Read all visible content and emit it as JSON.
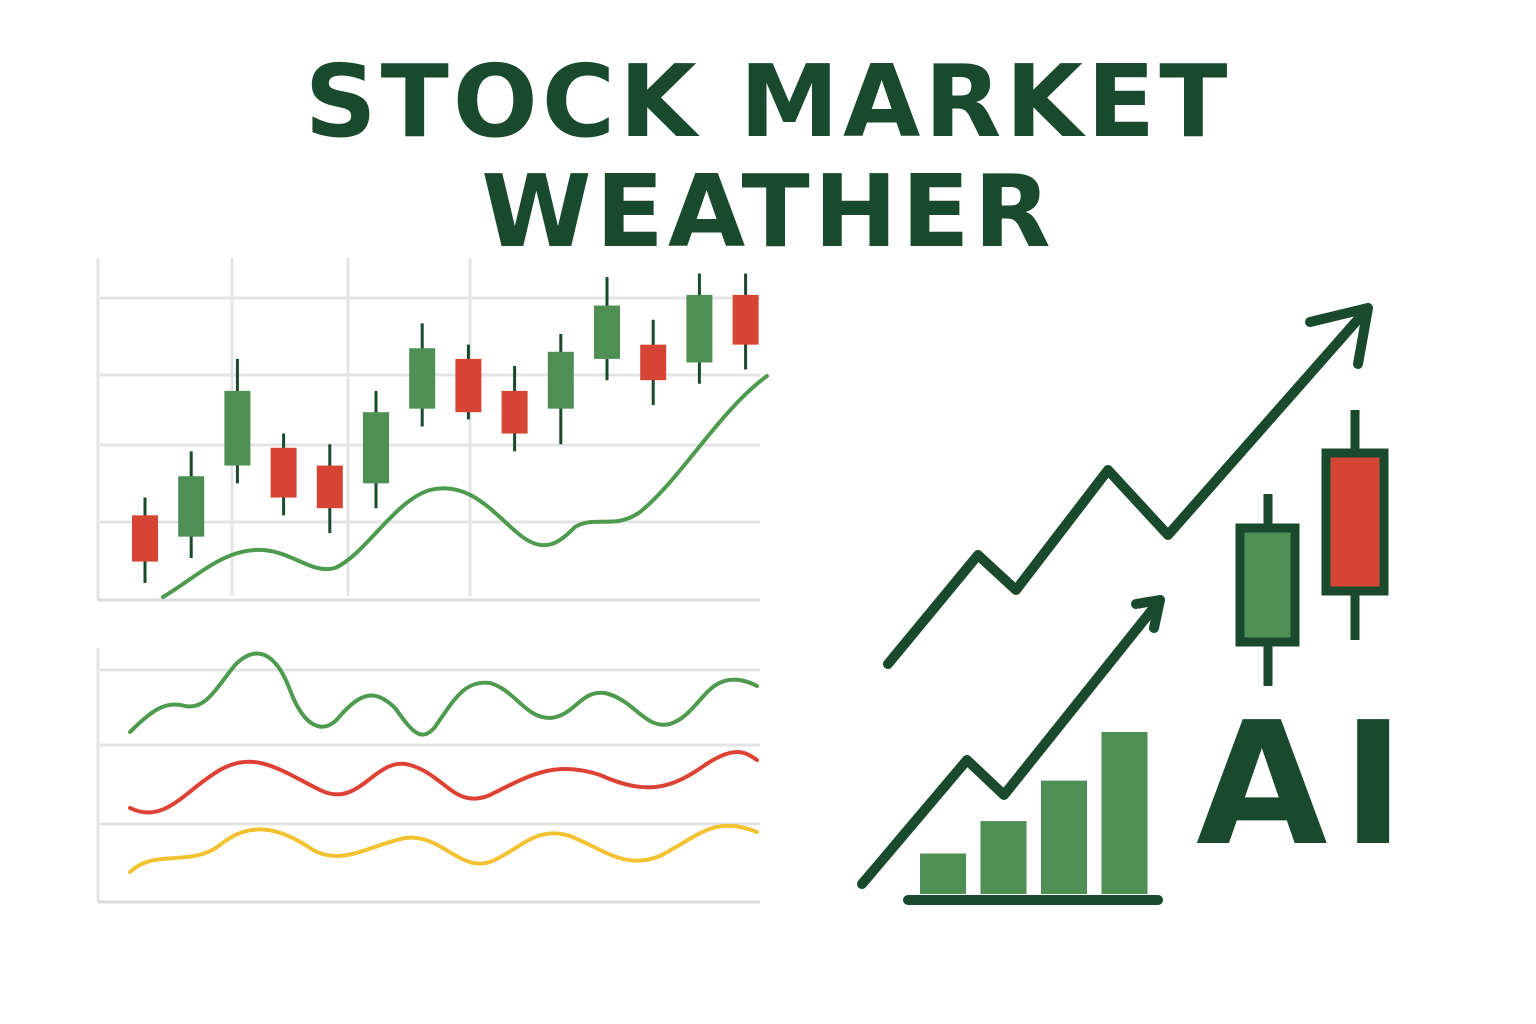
{
  "title": {
    "line1": "STOCK MARKET",
    "line2": "WEATHER"
  },
  "ai_label": "AI",
  "colors": {
    "title": "#1a4a2e",
    "dark_green": "#1a4a2e",
    "bull": "#4e8f54",
    "bear": "#d64534",
    "wave_green": "#4e9a4e",
    "wave_red": "#de4235",
    "wave_yellow": "#f2c232",
    "grid": "#e4e4e6"
  },
  "icons": [
    "candlestick-chart-icon",
    "rising-arrow-icon",
    "bar-chart-icon",
    "trend-arrow-icon"
  ],
  "candles": [
    {
      "type": "bear",
      "open": 4.1,
      "close": 2.8,
      "high": 4.6,
      "low": 2.2
    },
    {
      "type": "bull",
      "open": 3.5,
      "close": 5.2,
      "high": 5.9,
      "low": 2.9
    },
    {
      "type": "bull",
      "open": 5.5,
      "close": 7.6,
      "high": 8.5,
      "low": 5.0
    },
    {
      "type": "bear",
      "open": 6.0,
      "close": 4.6,
      "high": 6.4,
      "low": 4.1
    },
    {
      "type": "bear",
      "open": 5.5,
      "close": 4.3,
      "high": 6.1,
      "low": 3.6
    },
    {
      "type": "bull",
      "open": 5.0,
      "close": 7.0,
      "high": 7.6,
      "low": 4.3
    },
    {
      "type": "bull",
      "open": 7.1,
      "close": 8.8,
      "high": 9.5,
      "low": 6.6
    },
    {
      "type": "bear",
      "open": 8.5,
      "close": 7.0,
      "high": 8.9,
      "low": 6.8
    },
    {
      "type": "bear",
      "open": 7.6,
      "close": 6.4,
      "high": 8.3,
      "low": 5.9
    },
    {
      "type": "bull",
      "open": 7.1,
      "close": 8.7,
      "high": 9.2,
      "low": 6.1
    },
    {
      "type": "bull",
      "open": 8.5,
      "close": 10.0,
      "high": 10.8,
      "low": 7.9
    },
    {
      "type": "bear",
      "open": 8.9,
      "close": 7.9,
      "high": 9.6,
      "low": 7.2
    },
    {
      "type": "bull",
      "open": 8.4,
      "close": 10.3,
      "high": 10.9,
      "low": 7.8
    },
    {
      "type": "bear",
      "open": 10.3,
      "close": 8.9,
      "high": 10.9,
      "low": 8.2
    }
  ],
  "bars": [
    1.0,
    1.8,
    2.8,
    4.0
  ]
}
